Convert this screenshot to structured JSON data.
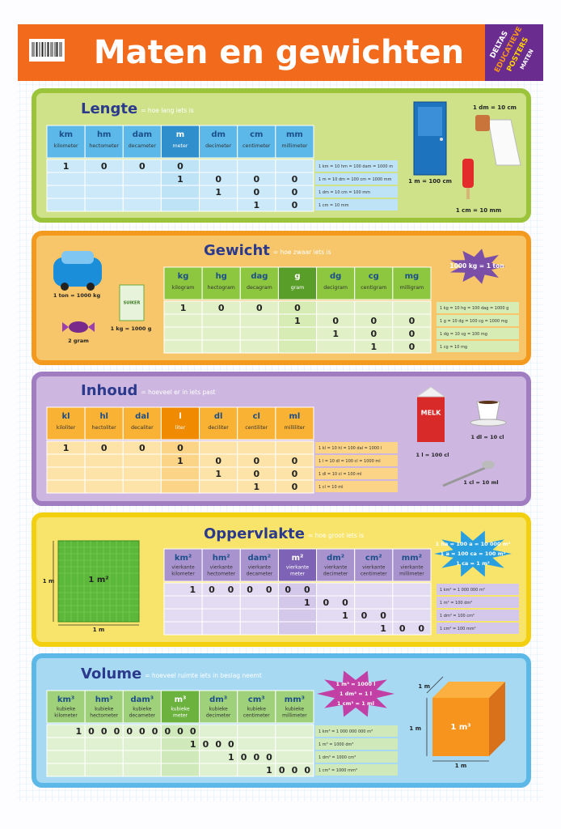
{
  "header": {
    "title": "Maten en gewichten",
    "badge": [
      "DELTAS",
      "EDUCATIEVE",
      "POSTERS",
      "MATEN"
    ]
  },
  "sections": [
    {
      "title": "Lengte",
      "subtitle": "= hoe lang iets is",
      "units": [
        {
          "symbol": "km",
          "name": "kilometer"
        },
        {
          "symbol": "hm",
          "name": "hectometer"
        },
        {
          "symbol": "dam",
          "name": "decameter"
        },
        {
          "symbol": "m",
          "name": "meter"
        },
        {
          "symbol": "dm",
          "name": "decimeter"
        },
        {
          "symbol": "cm",
          "name": "centimeter"
        },
        {
          "symbol": "mm",
          "name": "millimeter"
        }
      ],
      "rows": [
        {
          "digits": [
            1,
            0,
            0,
            0,
            null,
            null,
            null
          ],
          "note": "1 km = 10 hm = 100 dam = 1000 m"
        },
        {
          "digits": [
            null,
            null,
            null,
            1,
            0,
            0,
            0
          ],
          "note": "1 m = 10 dm = 100 cm = 1000 mm"
        },
        {
          "digits": [
            null,
            null,
            null,
            null,
            1,
            0,
            0
          ],
          "note": "1 dm = 10 cm = 100 mm"
        },
        {
          "digits": [
            null,
            null,
            null,
            null,
            null,
            1,
            0
          ],
          "note": "1 cm = 10 mm"
        }
      ],
      "labels": [
        "1 dm = 10 cm",
        "1 m = 100 cm",
        "1 cm = 10 mm"
      ]
    },
    {
      "title": "Gewicht",
      "subtitle": "= hoe zwaar iets is",
      "units": [
        {
          "symbol": "kg",
          "name": "kilogram"
        },
        {
          "symbol": "hg",
          "name": "hectogram"
        },
        {
          "symbol": "dag",
          "name": "decagram"
        },
        {
          "symbol": "g",
          "name": "gram"
        },
        {
          "symbol": "dg",
          "name": "decigram"
        },
        {
          "symbol": "cg",
          "name": "centigram"
        },
        {
          "symbol": "mg",
          "name": "milligram"
        }
      ],
      "rows": [
        {
          "digits": [
            1,
            0,
            0,
            0,
            null,
            null,
            null
          ],
          "note": "1 kg = 10 hg = 100 dag = 1000 g"
        },
        {
          "digits": [
            null,
            null,
            null,
            1,
            0,
            0,
            0
          ],
          "note": "1 g = 10 dg = 100 cg = 1000 mg"
        },
        {
          "digits": [
            null,
            null,
            null,
            null,
            1,
            0,
            0
          ],
          "note": "1 dg = 10 cg = 100 mg"
        },
        {
          "digits": [
            null,
            null,
            null,
            null,
            null,
            1,
            0
          ],
          "note": "1 cg = 10 mg"
        }
      ],
      "labels": [
        "1000 kg = 1 ton",
        "1 ton = 1000 kg",
        "2 gram",
        "1 kg = 1000 g",
        "SUIKER"
      ]
    },
    {
      "title": "Inhoud",
      "subtitle": "= hoeveel er in iets past",
      "units": [
        {
          "symbol": "kl",
          "name": "kiloliter"
        },
        {
          "symbol": "hl",
          "name": "hectoliter"
        },
        {
          "symbol": "dal",
          "name": "decaliter"
        },
        {
          "symbol": "l",
          "name": "liter"
        },
        {
          "symbol": "dl",
          "name": "deciliter"
        },
        {
          "symbol": "cl",
          "name": "centiliter"
        },
        {
          "symbol": "ml",
          "name": "milliliter"
        }
      ],
      "rows": [
        {
          "digits": [
            1,
            0,
            0,
            0,
            null,
            null,
            null
          ],
          "note": "1 kl = 10 hl = 100 dal = 1000 l"
        },
        {
          "digits": [
            null,
            null,
            null,
            1,
            0,
            0,
            0
          ],
          "note": "1 l = 10 dl = 100 cl = 1000 ml"
        },
        {
          "digits": [
            null,
            null,
            null,
            null,
            1,
            0,
            0
          ],
          "note": "1 dl = 10 cl = 100 ml"
        },
        {
          "digits": [
            null,
            null,
            null,
            null,
            null,
            1,
            0
          ],
          "note": "1 cl = 10 ml"
        }
      ],
      "labels": [
        "MELK",
        "1 l = 100 cl",
        "1 dl = 10 cl",
        "1 cl = 10 ml"
      ]
    },
    {
      "title": "Oppervlakte",
      "subtitle": "= hoe groot iets is",
      "units": [
        {
          "symbol": "km²",
          "name": [
            "vierkante",
            "kilometer"
          ]
        },
        {
          "symbol": "hm²",
          "name": [
            "vierkante",
            "hectometer"
          ]
        },
        {
          "symbol": "dam²",
          "name": [
            "vierkante",
            "decameter"
          ]
        },
        {
          "symbol": "m²",
          "name": [
            "vierkante",
            "meter"
          ]
        },
        {
          "symbol": "dm²",
          "name": [
            "vierkante",
            "decimeter"
          ]
        },
        {
          "symbol": "cm²",
          "name": [
            "vierkante",
            "centimeter"
          ]
        },
        {
          "symbol": "mm²",
          "name": [
            "vierkante",
            "millimeter"
          ]
        }
      ],
      "rows": [
        {
          "digits": [
            null,
            1,
            0,
            0,
            0,
            0,
            0,
            0,
            null,
            null,
            null,
            null,
            null,
            null
          ],
          "note": "1 km² = 1 000 000 m²"
        },
        {
          "digits": [
            null,
            null,
            null,
            null,
            null,
            null,
            null,
            1,
            0,
            0,
            null,
            null,
            null,
            null
          ],
          "note": "1 m² = 100 dm²"
        },
        {
          "digits": [
            null,
            null,
            null,
            null,
            null,
            null,
            null,
            null,
            null,
            1,
            0,
            0,
            null,
            null
          ],
          "note": "1 dm² = 100 cm²"
        },
        {
          "digits": [
            null,
            null,
            null,
            null,
            null,
            null,
            null,
            null,
            null,
            null,
            null,
            1,
            0,
            0
          ],
          "note": "1 cm² = 100 mm²"
        }
      ],
      "labels": [
        "1 ha = 100 a = 10 000 m²",
        "1 a = 100 ca = 100 m²",
        "1 ca = 1 m²",
        "1 m²",
        "1 m",
        "1 m"
      ]
    },
    {
      "title": "Volume",
      "subtitle": "= hoeveel ruimte iets in beslag neemt",
      "units": [
        {
          "symbol": "km³",
          "name": [
            "kubieke",
            "kilometer"
          ]
        },
        {
          "symbol": "hm³",
          "name": [
            "kubieke",
            "hectometer"
          ]
        },
        {
          "symbol": "dam³",
          "name": [
            "kubieke",
            "decameter"
          ]
        },
        {
          "symbol": "m³",
          "name": [
            "kubieke",
            "meter"
          ]
        },
        {
          "symbol": "dm³",
          "name": [
            "kubieke",
            "decimeter"
          ]
        },
        {
          "symbol": "cm³",
          "name": [
            "kubieke",
            "centimeter"
          ]
        },
        {
          "symbol": "mm³",
          "name": [
            "kubieke",
            "millimeter"
          ]
        }
      ],
      "rows": [
        {
          "digits": [
            null,
            null,
            1,
            0,
            0,
            0,
            0,
            0,
            0,
            0,
            0,
            0,
            null,
            null,
            null,
            null,
            null,
            null,
            null,
            null,
            null
          ],
          "note": "1 km³ = 1 000 000 000 m³"
        },
        {
          "digits": [
            null,
            null,
            null,
            null,
            null,
            null,
            null,
            null,
            null,
            null,
            null,
            1,
            0,
            0,
            0,
            null,
            null,
            null,
            null,
            null,
            null
          ],
          "note": "1 m³ = 1000 dm³"
        },
        {
          "digits": [
            null,
            null,
            null,
            null,
            null,
            null,
            null,
            null,
            null,
            null,
            null,
            null,
            null,
            null,
            1,
            0,
            0,
            0,
            null,
            null,
            null
          ],
          "note": "1 dm³ = 1000 cm³"
        },
        {
          "digits": [
            null,
            null,
            null,
            null,
            null,
            null,
            null,
            null,
            null,
            null,
            null,
            null,
            null,
            null,
            null,
            null,
            null,
            1,
            0,
            0,
            0
          ],
          "note": "1 cm³ = 1000 mm³"
        }
      ],
      "labels": [
        "1 m³ = 1000 l",
        "1 dm³ = 1 l",
        "1 cm³ = 1 ml",
        "1 m³",
        "1 m",
        "1 m",
        "1 m"
      ]
    }
  ]
}
